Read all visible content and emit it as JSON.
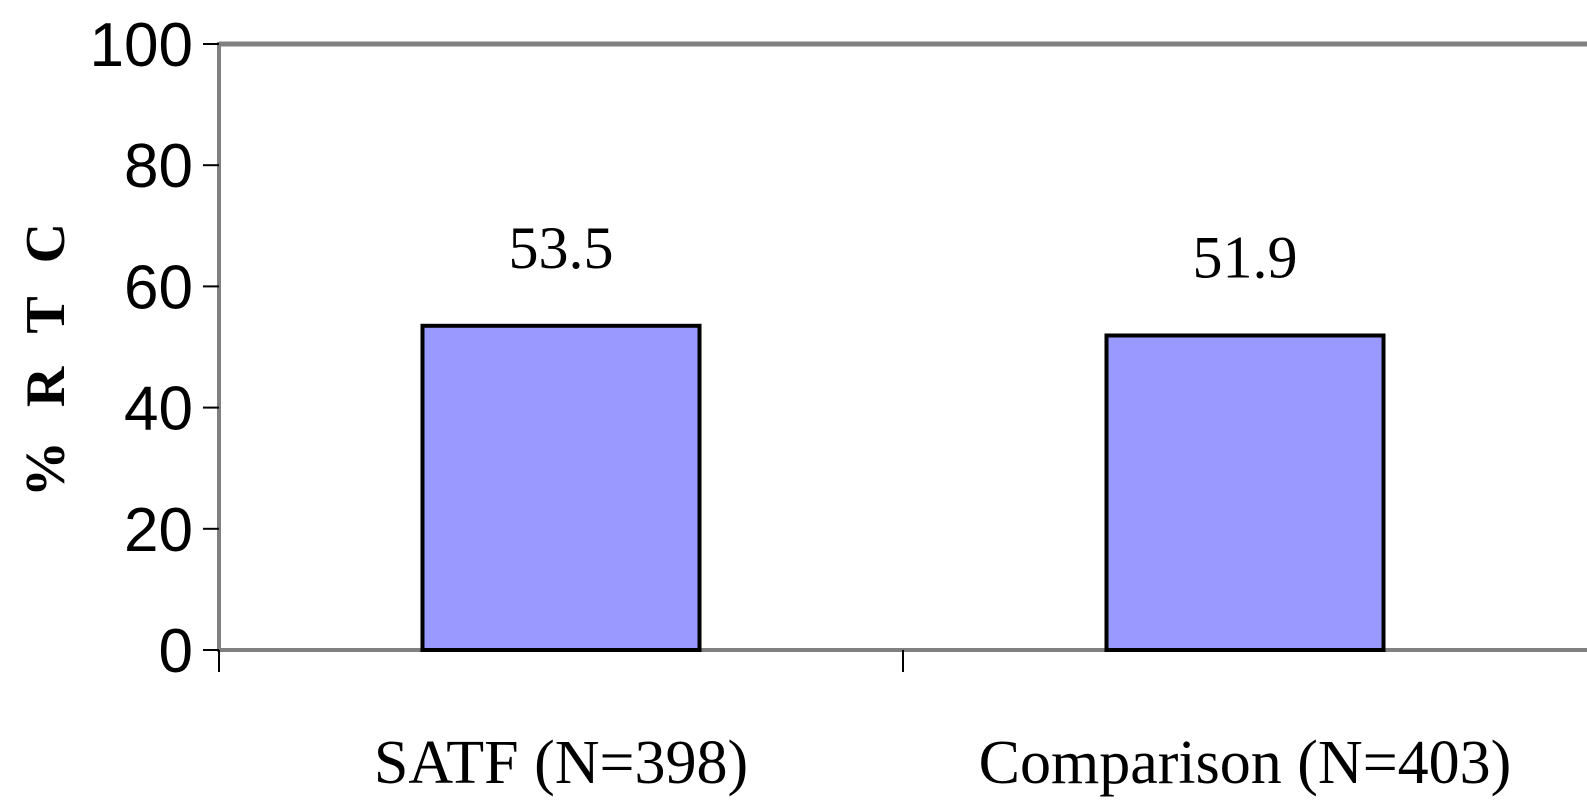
{
  "chart_data": {
    "type": "bar",
    "categories": [
      "SATF (N=398)",
      "Comparison (N=403)"
    ],
    "values": [
      53.5,
      51.9
    ],
    "data_labels": [
      "53.5",
      "51.9"
    ],
    "ylabel": "% R T C",
    "xlabel": "",
    "ylim": [
      0,
      100
    ],
    "yticks": [
      0,
      20,
      40,
      60,
      80,
      100
    ],
    "ytick_labels": [
      "0",
      "20",
      "40",
      "60",
      "80",
      "100"
    ],
    "bar_color": "#9999ff",
    "bar_edge_color": "#000000",
    "grid": false,
    "legend": "none"
  }
}
